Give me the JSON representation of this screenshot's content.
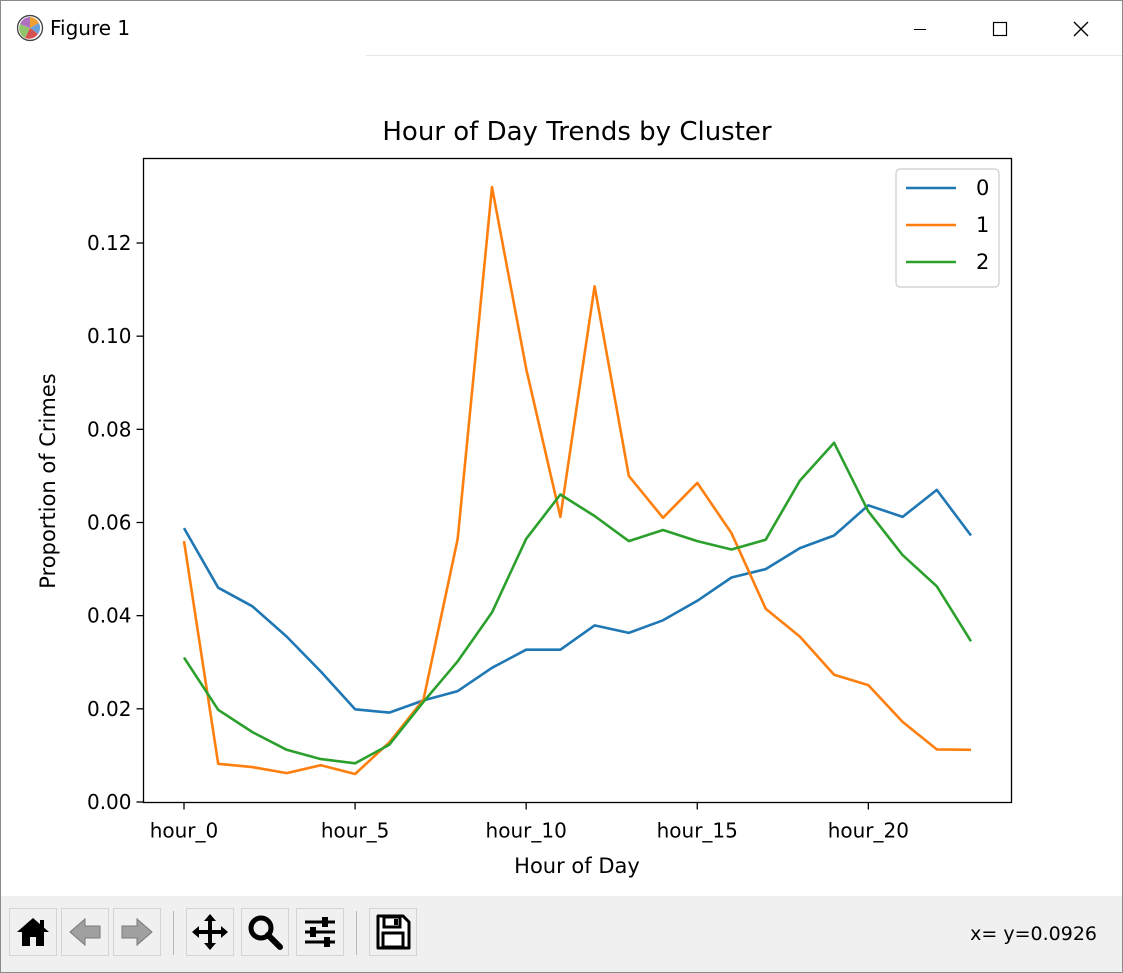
{
  "window": {
    "title": "Figure 1",
    "icon": "matplotlib-icon",
    "controls": [
      "minimize-icon",
      "maximize-icon",
      "close-icon"
    ]
  },
  "toolbar": {
    "buttons": [
      {
        "name": "home-button",
        "icon": "home-icon"
      },
      {
        "name": "back-button",
        "icon": "arrow-left-icon"
      },
      {
        "name": "forward-button",
        "icon": "arrow-right-icon"
      },
      {
        "name": "pan-button",
        "icon": "move-icon"
      },
      {
        "name": "zoom-button",
        "icon": "magnifier-icon"
      },
      {
        "name": "subplots-button",
        "icon": "sliders-icon"
      },
      {
        "name": "save-button",
        "icon": "floppy-disk-icon"
      }
    ],
    "coords": "x= y=0.0926"
  },
  "chart_data": {
    "type": "line",
    "title": "Hour of Day Trends by Cluster",
    "xlabel": "Hour of Day",
    "ylabel": "Proportion of Crimes",
    "x": [
      "hour_0",
      "hour_1",
      "hour_2",
      "hour_3",
      "hour_4",
      "hour_5",
      "hour_6",
      "hour_7",
      "hour_8",
      "hour_9",
      "hour_10",
      "hour_11",
      "hour_12",
      "hour_13",
      "hour_14",
      "hour_15",
      "hour_16",
      "hour_17",
      "hour_18",
      "hour_19",
      "hour_20",
      "hour_21",
      "hour_22",
      "hour_23"
    ],
    "xticks": [
      "hour_0",
      "hour_5",
      "hour_10",
      "hour_15",
      "hour_20"
    ],
    "ylim": [
      0,
      0.1385
    ],
    "yticks": [
      "0.00",
      "0.02",
      "0.04",
      "0.06",
      "0.08",
      "0.10",
      "0.12"
    ],
    "series": [
      {
        "name": "0",
        "color": "#1f77b4",
        "values": [
          0.0588,
          0.046,
          0.042,
          0.0355,
          0.028,
          0.0199,
          0.0192,
          0.0218,
          0.0238,
          0.0288,
          0.0327,
          0.0327,
          0.0379,
          0.0363,
          0.039,
          0.0432,
          0.0482,
          0.05,
          0.0545,
          0.0572,
          0.0637,
          0.0612,
          0.067,
          0.0572
        ]
      },
      {
        "name": "1",
        "color": "#ff7f0e",
        "values": [
          0.056,
          0.0082,
          0.0075,
          0.0062,
          0.0079,
          0.006,
          0.0128,
          0.022,
          0.0565,
          0.132,
          0.093,
          0.0612,
          0.1107,
          0.07,
          0.061,
          0.0685,
          0.0577,
          0.0415,
          0.0355,
          0.0273,
          0.0251,
          0.0172,
          0.0113,
          0.0112
        ]
      },
      {
        "name": "2",
        "color": "#2ca02c",
        "values": [
          0.031,
          0.0198,
          0.015,
          0.0112,
          0.0092,
          0.0083,
          0.0123,
          0.0215,
          0.0302,
          0.0407,
          0.0565,
          0.066,
          0.0614,
          0.056,
          0.0584,
          0.056,
          0.0542,
          0.0563,
          0.069,
          0.0771,
          0.0624,
          0.053,
          0.0463,
          0.0345
        ]
      }
    ],
    "legend": "top-right",
    "grid": false
  }
}
